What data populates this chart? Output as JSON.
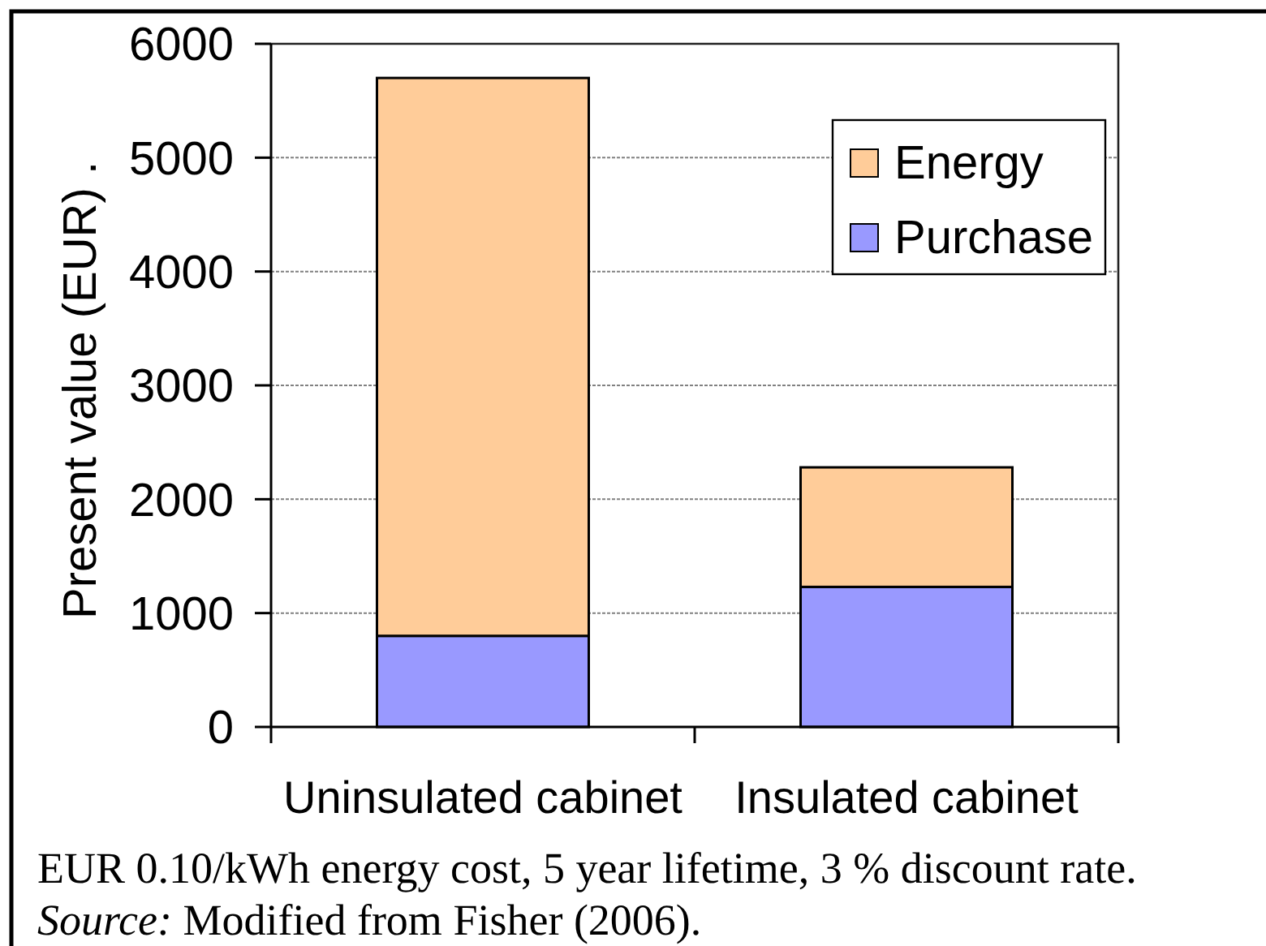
{
  "chart_data": {
    "type": "bar",
    "categories": [
      "Uninsulated cabinet",
      "Insulated cabinet"
    ],
    "series": [
      {
        "name": "Purchase",
        "color": "#9999ff",
        "values": [
          800,
          1230
        ]
      },
      {
        "name": "Energy",
        "color": "#ffcc99",
        "values": [
          4900,
          1050
        ]
      }
    ],
    "stacked": true,
    "ylabel": "Present value (EUR) .",
    "ylim": [
      0,
      6000
    ],
    "yticks": [
      0,
      1000,
      2000,
      3000,
      4000,
      5000,
      6000
    ],
    "grid": "y",
    "legend": "top right",
    "annotations": [
      "EUR 0.10/kWh energy cost, 5 year lifetime, 3 % discount rate.",
      "Source: Modified from Fisher (2006)."
    ]
  }
}
